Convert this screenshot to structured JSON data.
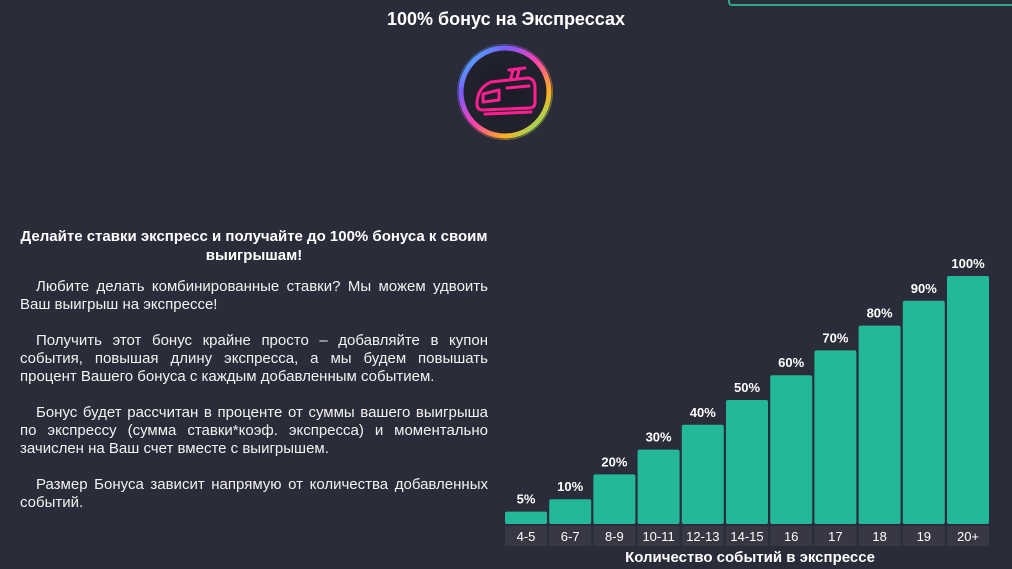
{
  "title": "100% бонус на Экспрессах",
  "badge": {
    "icon": "train-icon",
    "color": "#ff1f8e"
  },
  "text": {
    "headline": "Делайте ставки экспресс и получайте до 100% бонуса к своим выигрышам!",
    "paragraphs": [
      "Любите делать комбинированные ставки? Мы можем удвоить Ваш выигрыш на экспрессе!",
      "Получить этот бонус крайне просто – добавляйте в купон события, повышая длину экспресса, а мы будем повышать процент Вашего бонуса с каждым добавленным событием.",
      "Бонус будет рассчитан в проценте от суммы вашего выигрыша по экспрессу (сумма ставки*коэф. экспресса) и моментально зачислен на Ваш счет вместе с выигрышем.",
      "Размер Бонуса зависит напрямую от количества добавленных событий."
    ]
  },
  "chart_data": {
    "type": "bar",
    "categories": [
      "4-5",
      "6-7",
      "8-9",
      "10-11",
      "12-13",
      "14-15",
      "16",
      "17",
      "18",
      "19",
      "20+"
    ],
    "values": [
      5,
      10,
      20,
      30,
      40,
      50,
      60,
      70,
      80,
      90,
      100
    ],
    "value_labels": [
      "5%",
      "10%",
      "20%",
      "30%",
      "40%",
      "50%",
      "60%",
      "70%",
      "80%",
      "90%",
      "100%"
    ],
    "xlabel": "Количество событий в экспрессе",
    "ylabel": "",
    "ylim": [
      0,
      100
    ],
    "grid": false,
    "bar_color": "#23b898",
    "category_strip_color": "#373844"
  }
}
